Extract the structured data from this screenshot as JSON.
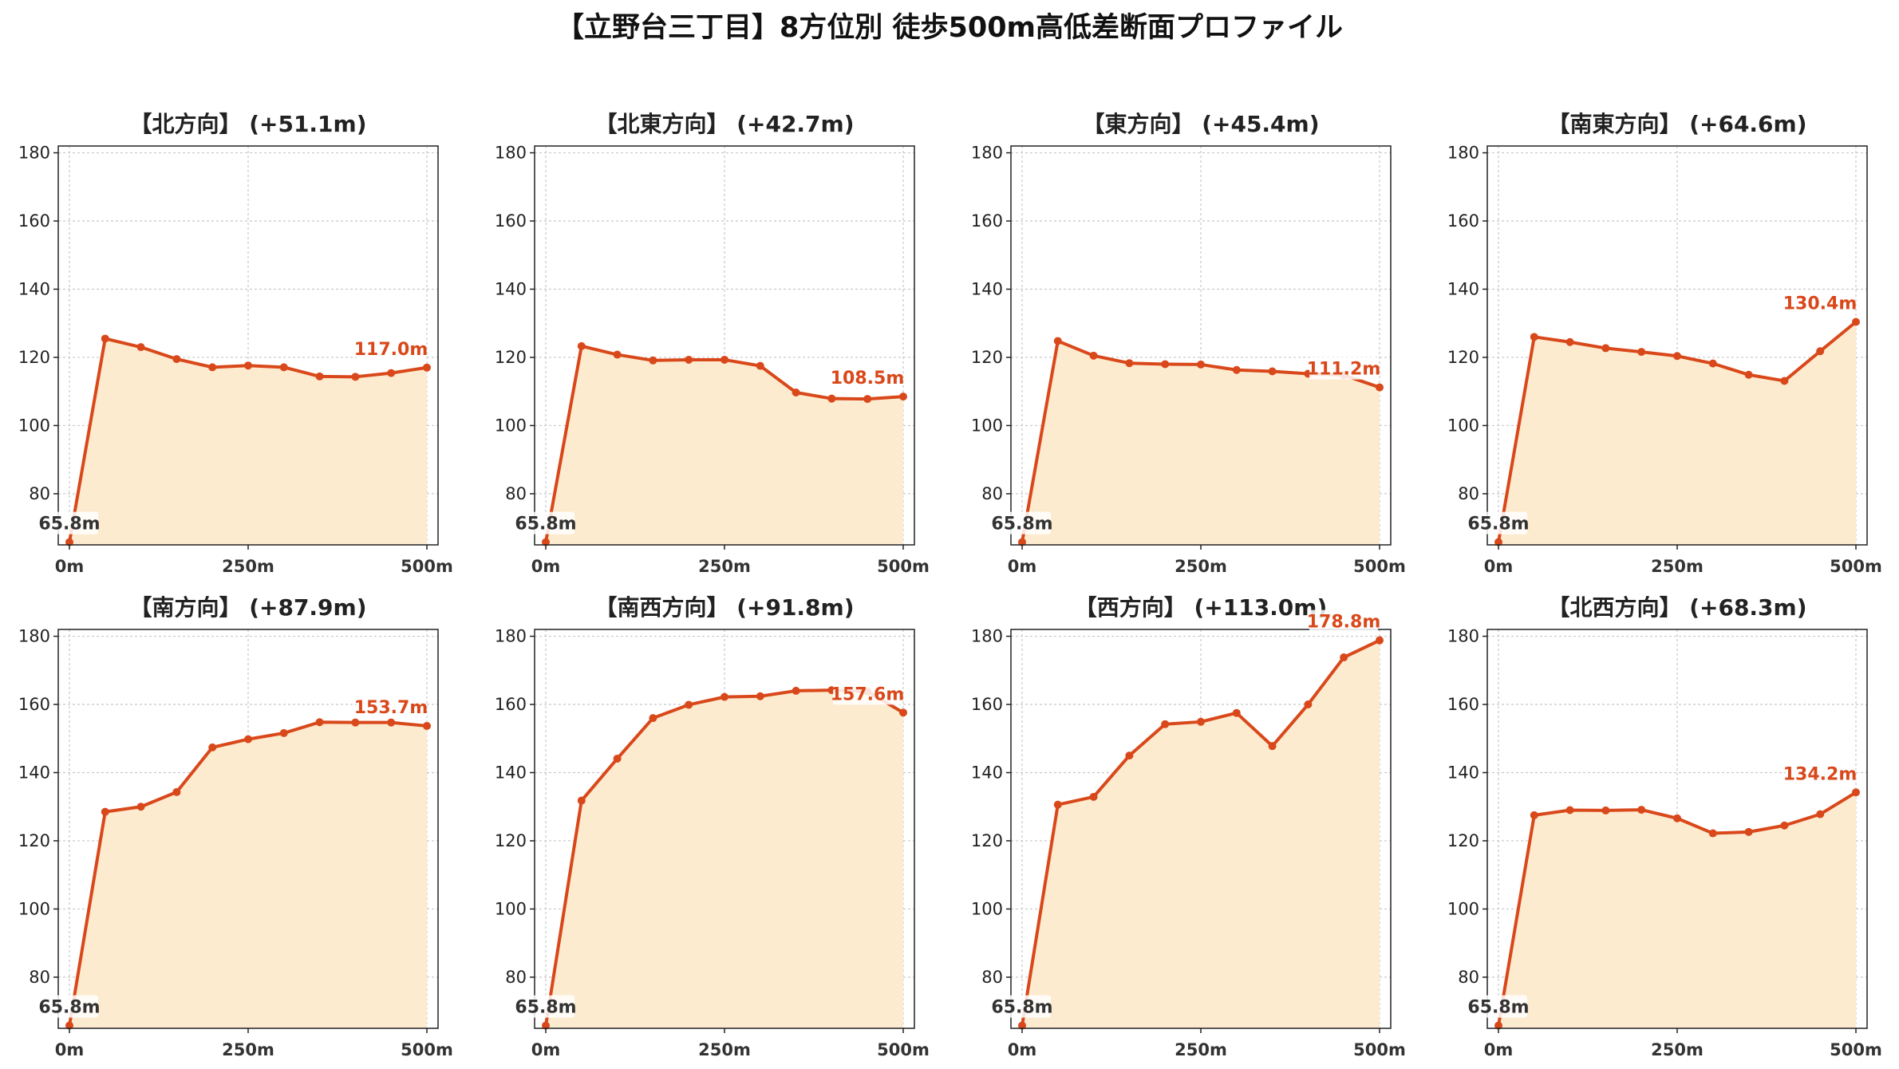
{
  "title": "【立野台三丁目】8方位別 徒歩500m高低差断面プロファイル",
  "colors": {
    "line": "#d9481a",
    "fill": "#fdebd0",
    "grid": "#c8c8c8",
    "axis": "#222222"
  },
  "chart_data": [
    {
      "type": "area",
      "title": "【北方向】 (+51.1m)",
      "x": [
        0,
        50,
        100,
        150,
        200,
        250,
        300,
        350,
        400,
        450,
        500
      ],
      "values": [
        65.8,
        125.5,
        123.0,
        119.5,
        117.1,
        117.6,
        117.1,
        114.4,
        114.3,
        115.4,
        117.0
      ],
      "start_label": "65.8m",
      "end_label": "117.0m",
      "xticks": [
        "0m",
        "250m",
        "500m"
      ],
      "yticks": [
        "80",
        "100",
        "120",
        "140",
        "160",
        "180"
      ],
      "xlim": [
        0,
        500
      ],
      "ylim": [
        65,
        182
      ],
      "grid": true
    },
    {
      "type": "area",
      "title": "【北東方向】 (+42.7m)",
      "x": [
        0,
        50,
        100,
        150,
        200,
        250,
        300,
        350,
        400,
        450,
        500
      ],
      "values": [
        65.8,
        123.3,
        120.8,
        119.1,
        119.3,
        119.3,
        117.5,
        109.7,
        107.9,
        107.8,
        108.5
      ],
      "start_label": "65.8m",
      "end_label": "108.5m",
      "xticks": [
        "0m",
        "250m",
        "500m"
      ],
      "yticks": [
        "80",
        "100",
        "120",
        "140",
        "160",
        "180"
      ],
      "xlim": [
        0,
        500
      ],
      "ylim": [
        65,
        182
      ],
      "grid": true
    },
    {
      "type": "area",
      "title": "【東方向】 (+45.4m)",
      "x": [
        0,
        50,
        100,
        150,
        200,
        250,
        300,
        350,
        400,
        450,
        500
      ],
      "values": [
        65.8,
        124.8,
        120.5,
        118.3,
        118.0,
        117.9,
        116.3,
        115.9,
        115.2,
        114.8,
        111.2
      ],
      "start_label": "65.8m",
      "end_label": "111.2m",
      "xticks": [
        "0m",
        "250m",
        "500m"
      ],
      "yticks": [
        "80",
        "100",
        "120",
        "140",
        "160",
        "180"
      ],
      "xlim": [
        0,
        500
      ],
      "ylim": [
        65,
        182
      ],
      "grid": true
    },
    {
      "type": "area",
      "title": "【南東方向】 (+64.6m)",
      "x": [
        0,
        50,
        100,
        150,
        200,
        250,
        300,
        350,
        400,
        450,
        500
      ],
      "values": [
        65.8,
        126.0,
        124.5,
        122.7,
        121.6,
        120.4,
        118.2,
        114.9,
        113.1,
        121.8,
        130.4
      ],
      "start_label": "65.8m",
      "end_label": "130.4m",
      "xticks": [
        "0m",
        "250m",
        "500m"
      ],
      "yticks": [
        "80",
        "100",
        "120",
        "140",
        "160",
        "180"
      ],
      "xlim": [
        0,
        500
      ],
      "ylim": [
        65,
        182
      ],
      "grid": true
    },
    {
      "type": "area",
      "title": "【南方向】 (+87.9m)",
      "x": [
        0,
        50,
        100,
        150,
        200,
        250,
        300,
        350,
        400,
        450,
        500
      ],
      "values": [
        65.8,
        128.5,
        130.0,
        134.3,
        147.4,
        149.8,
        151.6,
        154.8,
        154.7,
        154.7,
        153.7
      ],
      "start_label": "65.8m",
      "end_label": "153.7m",
      "xticks": [
        "0m",
        "250m",
        "500m"
      ],
      "yticks": [
        "80",
        "100",
        "120",
        "140",
        "160",
        "180"
      ],
      "xlim": [
        0,
        500
      ],
      "ylim": [
        65,
        182
      ],
      "grid": true
    },
    {
      "type": "area",
      "title": "【南西方向】 (+91.8m)",
      "x": [
        0,
        50,
        100,
        150,
        200,
        250,
        300,
        350,
        400,
        450,
        500
      ],
      "values": [
        65.8,
        131.8,
        144.1,
        156.0,
        159.9,
        162.2,
        162.4,
        164.0,
        164.2,
        163.8,
        157.6
      ],
      "start_label": "65.8m",
      "end_label": "157.6m",
      "xticks": [
        "0m",
        "250m",
        "500m"
      ],
      "yticks": [
        "80",
        "100",
        "120",
        "140",
        "160",
        "180"
      ],
      "xlim": [
        0,
        500
      ],
      "ylim": [
        65,
        182
      ],
      "grid": true
    },
    {
      "type": "area",
      "title": "【西方向】 (+113.0m)",
      "x": [
        0,
        50,
        100,
        150,
        200,
        250,
        300,
        350,
        400,
        450,
        500
      ],
      "values": [
        65.8,
        130.6,
        132.9,
        145.0,
        154.2,
        154.9,
        157.5,
        147.8,
        160.0,
        173.8,
        178.8
      ],
      "start_label": "65.8m",
      "end_label": "178.8m",
      "xticks": [
        "0m",
        "250m",
        "500m"
      ],
      "yticks": [
        "80",
        "100",
        "120",
        "140",
        "160",
        "180"
      ],
      "xlim": [
        0,
        500
      ],
      "ylim": [
        65,
        182
      ],
      "grid": true
    },
    {
      "type": "area",
      "title": "【北西方向】 (+68.3m)",
      "x": [
        0,
        50,
        100,
        150,
        200,
        250,
        300,
        350,
        400,
        450,
        500
      ],
      "values": [
        65.8,
        127.5,
        129.0,
        128.9,
        129.1,
        126.6,
        122.2,
        122.6,
        124.5,
        127.8,
        134.2
      ],
      "start_label": "65.8m",
      "end_label": "134.2m",
      "xticks": [
        "0m",
        "250m",
        "500m"
      ],
      "yticks": [
        "80",
        "100",
        "120",
        "140",
        "160",
        "180"
      ],
      "xlim": [
        0,
        500
      ],
      "ylim": [
        65,
        182
      ],
      "grid": true
    }
  ]
}
